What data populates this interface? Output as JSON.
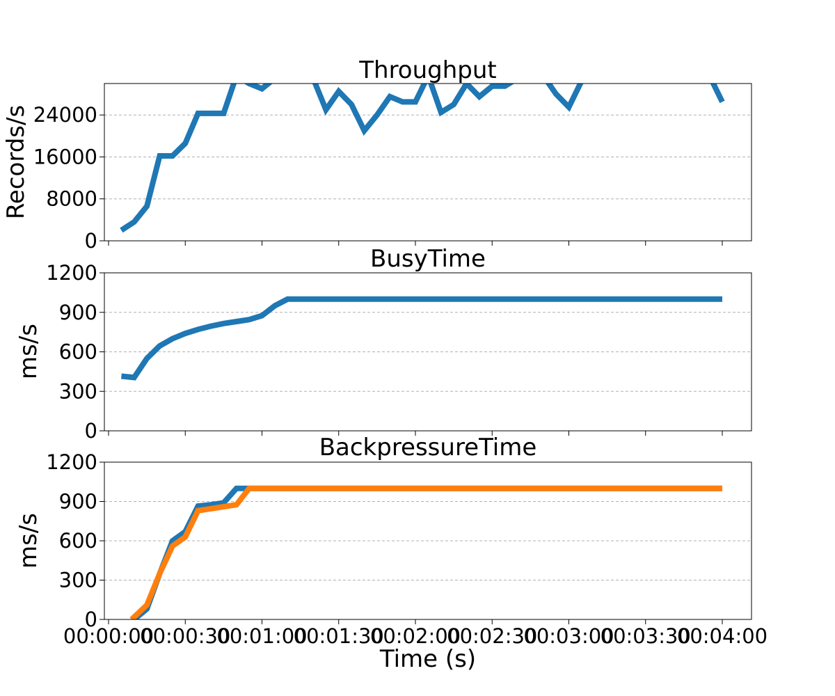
{
  "chart_data": [
    {
      "type": "line",
      "title": "Throughput",
      "xlabel": "",
      "ylabel": "Records/s",
      "ylim": [
        0,
        30000
      ],
      "yticks": [
        0,
        8000,
        16000,
        24000
      ],
      "grid": true,
      "x": [
        5,
        10,
        15,
        20,
        25,
        30,
        35,
        40,
        45,
        50,
        55,
        60,
        65,
        70,
        75,
        80,
        85,
        90,
        95,
        100,
        105,
        110,
        115,
        120,
        125,
        130,
        135,
        140,
        145,
        150,
        155,
        160,
        165,
        170,
        175,
        180,
        185,
        190,
        195,
        200,
        205,
        210,
        215,
        220,
        225,
        230,
        235,
        240
      ],
      "series": [
        {
          "color": "#1f77b4",
          "values": [
            2000,
            3600,
            6600,
            16200,
            16200,
            18600,
            24300,
            24300,
            24300,
            31500,
            30000,
            29000,
            31000,
            31500,
            31500,
            31000,
            25000,
            28500,
            26000,
            21000,
            24000,
            27500,
            26500,
            26500,
            31500,
            24500,
            26000,
            30000,
            27500,
            29500,
            29500,
            31000,
            31500,
            31500,
            28000,
            25500,
            30500,
            31500,
            31500,
            31500,
            31500,
            31500,
            31500,
            31500,
            31500,
            31500,
            31500,
            26500
          ]
        }
      ]
    },
    {
      "type": "line",
      "title": "BusyTime",
      "xlabel": "",
      "ylabel": "ms/s",
      "ylim": [
        0,
        1200
      ],
      "yticks": [
        0,
        300,
        600,
        900,
        1200
      ],
      "grid": true,
      "x": [
        5,
        10,
        15,
        20,
        25,
        30,
        35,
        40,
        45,
        50,
        55,
        60,
        65,
        70,
        75,
        80,
        240
      ],
      "series": [
        {
          "color": "#1f77b4",
          "values": [
            415,
            405,
            550,
            645,
            700,
            740,
            770,
            795,
            815,
            830,
            845,
            875,
            950,
            1000,
            1000,
            1000,
            1000
          ]
        }
      ]
    },
    {
      "type": "line",
      "title": "BackpressureTime",
      "xlabel": "Time (s)",
      "ylabel": "ms/s",
      "ylim": [
        0,
        1200
      ],
      "yticks": [
        0,
        300,
        600,
        900,
        1200
      ],
      "grid": true,
      "x": [
        0,
        30,
        60,
        90,
        120,
        150,
        180,
        210,
        240
      ],
      "xtick_labels": [
        "00:00:00",
        "00:00:30",
        "00:01:00",
        "00:01:30",
        "00:02:00",
        "00:02:30",
        "00:03:00",
        "00:03:30",
        "00:04:00"
      ],
      "series": [
        {
          "color": "#1f77b4",
          "x": [
            10,
            15,
            20,
            25,
            30,
            35,
            40,
            45,
            50,
            55,
            240
          ],
          "values": [
            0,
            80,
            350,
            600,
            670,
            865,
            875,
            890,
            1000,
            1000,
            1000
          ]
        },
        {
          "color": "#ff7f0e",
          "x": [
            9,
            15,
            20,
            25,
            30,
            35,
            40,
            45,
            50,
            55,
            240
          ],
          "values": [
            0,
            110,
            350,
            560,
            630,
            830,
            845,
            860,
            875,
            1000,
            1000
          ]
        }
      ]
    }
  ]
}
